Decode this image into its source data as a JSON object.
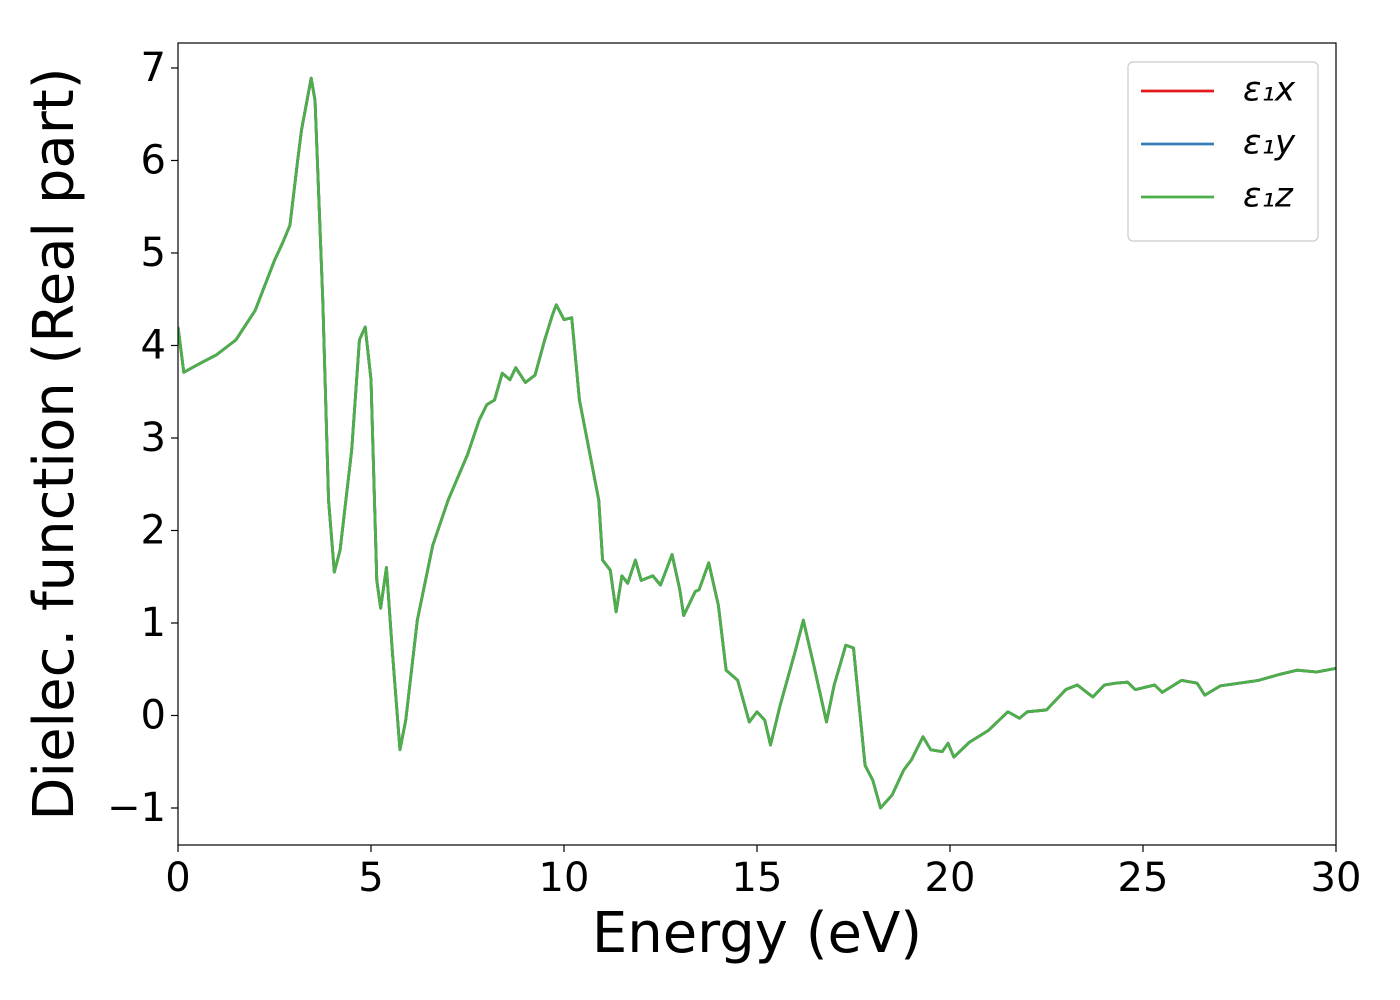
{
  "chart_data": {
    "type": "line",
    "xlabel": "Energy (eV)",
    "ylabel": "Dielec. function (Real part)",
    "x": [
      0,
      0.15,
      0.5,
      1.0,
      1.5,
      2.0,
      2.5,
      2.7,
      2.9,
      3.1,
      3.2,
      3.45,
      3.55,
      3.75,
      3.9,
      4.05,
      4.2,
      4.5,
      4.7,
      4.85,
      5.0,
      5.15,
      5.25,
      5.4,
      5.55,
      5.75,
      5.9,
      6.2,
      6.6,
      7.0,
      7.5,
      7.8,
      8.0,
      8.2,
      8.4,
      8.6,
      8.75,
      9.0,
      9.25,
      9.5,
      9.7,
      9.8,
      10.0,
      10.2,
      10.4,
      10.6,
      10.9,
      11.0,
      11.2,
      11.35,
      11.5,
      11.65,
      11.85,
      12.0,
      12.3,
      12.5,
      12.8,
      13.0,
      13.1,
      13.4,
      13.5,
      13.75,
      14.0,
      14.2,
      14.5,
      14.8,
      15.0,
      15.2,
      15.35,
      15.6,
      16.0,
      16.2,
      16.5,
      16.8,
      17.0,
      17.3,
      17.5,
      17.8,
      18.0,
      18.2,
      18.5,
      18.8,
      19.0,
      19.3,
      19.5,
      19.8,
      19.95,
      20.1,
      20.5,
      21.0,
      21.5,
      21.8,
      22.0,
      22.5,
      23.0,
      23.3,
      23.7,
      24.0,
      24.3,
      24.6,
      24.8,
      25.3,
      25.5,
      26.0,
      26.4,
      26.6,
      27.0,
      27.5,
      28.0,
      28.5,
      29.0,
      29.5,
      30.0
    ],
    "series": [
      {
        "name": "ε₁x",
        "color": "#e41a1c",
        "values": [
          4.2,
          3.71,
          3.79,
          3.9,
          4.06,
          4.38,
          4.92,
          5.1,
          5.3,
          6.0,
          6.33,
          6.89,
          6.65,
          4.5,
          2.33,
          1.55,
          1.79,
          2.87,
          4.06,
          4.2,
          3.63,
          1.46,
          1.16,
          1.6,
          0.71,
          -0.37,
          -0.05,
          1.03,
          1.84,
          2.33,
          2.82,
          3.19,
          3.36,
          3.41,
          3.7,
          3.63,
          3.76,
          3.6,
          3.68,
          4.06,
          4.33,
          4.44,
          4.28,
          4.3,
          3.41,
          2.98,
          2.33,
          1.68,
          1.57,
          1.12,
          1.51,
          1.43,
          1.68,
          1.46,
          1.51,
          1.41,
          1.74,
          1.36,
          1.08,
          1.34,
          1.36,
          1.65,
          1.19,
          0.49,
          0.38,
          -0.07,
          0.04,
          -0.05,
          -0.32,
          0.11,
          0.71,
          1.03,
          0.49,
          -0.07,
          0.33,
          0.76,
          0.73,
          -0.54,
          -0.7,
          -1.0,
          -0.86,
          -0.59,
          -0.48,
          -0.23,
          -0.37,
          -0.39,
          -0.3,
          -0.45,
          -0.29,
          -0.16,
          0.04,
          -0.03,
          0.04,
          0.06,
          0.28,
          0.33,
          0.2,
          0.33,
          0.35,
          0.36,
          0.28,
          0.33,
          0.25,
          0.38,
          0.35,
          0.22,
          0.32,
          0.35,
          0.38,
          0.44,
          0.49,
          0.47,
          0.51
        ]
      },
      {
        "name": "ε₁y",
        "color": "#377eb8",
        "values": [
          4.2,
          3.71,
          3.79,
          3.9,
          4.06,
          4.38,
          4.92,
          5.1,
          5.3,
          6.0,
          6.33,
          6.89,
          6.65,
          4.5,
          2.33,
          1.55,
          1.79,
          2.87,
          4.06,
          4.2,
          3.63,
          1.46,
          1.16,
          1.6,
          0.71,
          -0.37,
          -0.05,
          1.03,
          1.84,
          2.33,
          2.82,
          3.19,
          3.36,
          3.41,
          3.7,
          3.63,
          3.76,
          3.6,
          3.68,
          4.06,
          4.33,
          4.44,
          4.28,
          4.3,
          3.41,
          2.98,
          2.33,
          1.68,
          1.57,
          1.12,
          1.51,
          1.43,
          1.68,
          1.46,
          1.51,
          1.41,
          1.74,
          1.36,
          1.08,
          1.34,
          1.36,
          1.65,
          1.19,
          0.49,
          0.38,
          -0.07,
          0.04,
          -0.05,
          -0.32,
          0.11,
          0.71,
          1.03,
          0.49,
          -0.07,
          0.33,
          0.76,
          0.73,
          -0.54,
          -0.7,
          -1.0,
          -0.86,
          -0.59,
          -0.48,
          -0.23,
          -0.37,
          -0.39,
          -0.3,
          -0.45,
          -0.29,
          -0.16,
          0.04,
          -0.03,
          0.04,
          0.06,
          0.28,
          0.33,
          0.2,
          0.33,
          0.35,
          0.36,
          0.28,
          0.33,
          0.25,
          0.38,
          0.35,
          0.22,
          0.32,
          0.35,
          0.38,
          0.44,
          0.49,
          0.47,
          0.51
        ]
      },
      {
        "name": "ε₁z",
        "color": "#4daf4a",
        "values": [
          4.2,
          3.71,
          3.79,
          3.9,
          4.06,
          4.38,
          4.92,
          5.1,
          5.3,
          6.0,
          6.33,
          6.89,
          6.65,
          4.5,
          2.33,
          1.55,
          1.79,
          2.87,
          4.06,
          4.2,
          3.63,
          1.46,
          1.16,
          1.6,
          0.71,
          -0.37,
          -0.05,
          1.03,
          1.84,
          2.33,
          2.82,
          3.19,
          3.36,
          3.41,
          3.7,
          3.63,
          3.76,
          3.6,
          3.68,
          4.06,
          4.33,
          4.44,
          4.28,
          4.3,
          3.41,
          2.98,
          2.33,
          1.68,
          1.57,
          1.12,
          1.51,
          1.43,
          1.68,
          1.46,
          1.51,
          1.41,
          1.74,
          1.36,
          1.08,
          1.34,
          1.36,
          1.65,
          1.19,
          0.49,
          0.38,
          -0.07,
          0.04,
          -0.05,
          -0.32,
          0.11,
          0.71,
          1.03,
          0.49,
          -0.07,
          0.33,
          0.76,
          0.73,
          -0.54,
          -0.7,
          -1.0,
          -0.86,
          -0.59,
          -0.48,
          -0.23,
          -0.37,
          -0.39,
          -0.3,
          -0.45,
          -0.29,
          -0.16,
          0.04,
          -0.03,
          0.04,
          0.06,
          0.28,
          0.33,
          0.2,
          0.33,
          0.35,
          0.36,
          0.28,
          0.33,
          0.25,
          0.38,
          0.35,
          0.22,
          0.32,
          0.35,
          0.38,
          0.44,
          0.49,
          0.47,
          0.51
        ]
      }
    ],
    "xlim": [
      0,
      30
    ],
    "xticks": [
      0,
      5,
      10,
      15,
      20,
      25,
      30
    ],
    "ylim": [
      -1.4,
      7.27
    ],
    "yticks": [
      {
        "value": -1,
        "label": "−1"
      },
      0,
      1,
      2,
      3,
      4,
      5,
      6,
      7
    ],
    "grid": false,
    "legend": "upper right"
  }
}
